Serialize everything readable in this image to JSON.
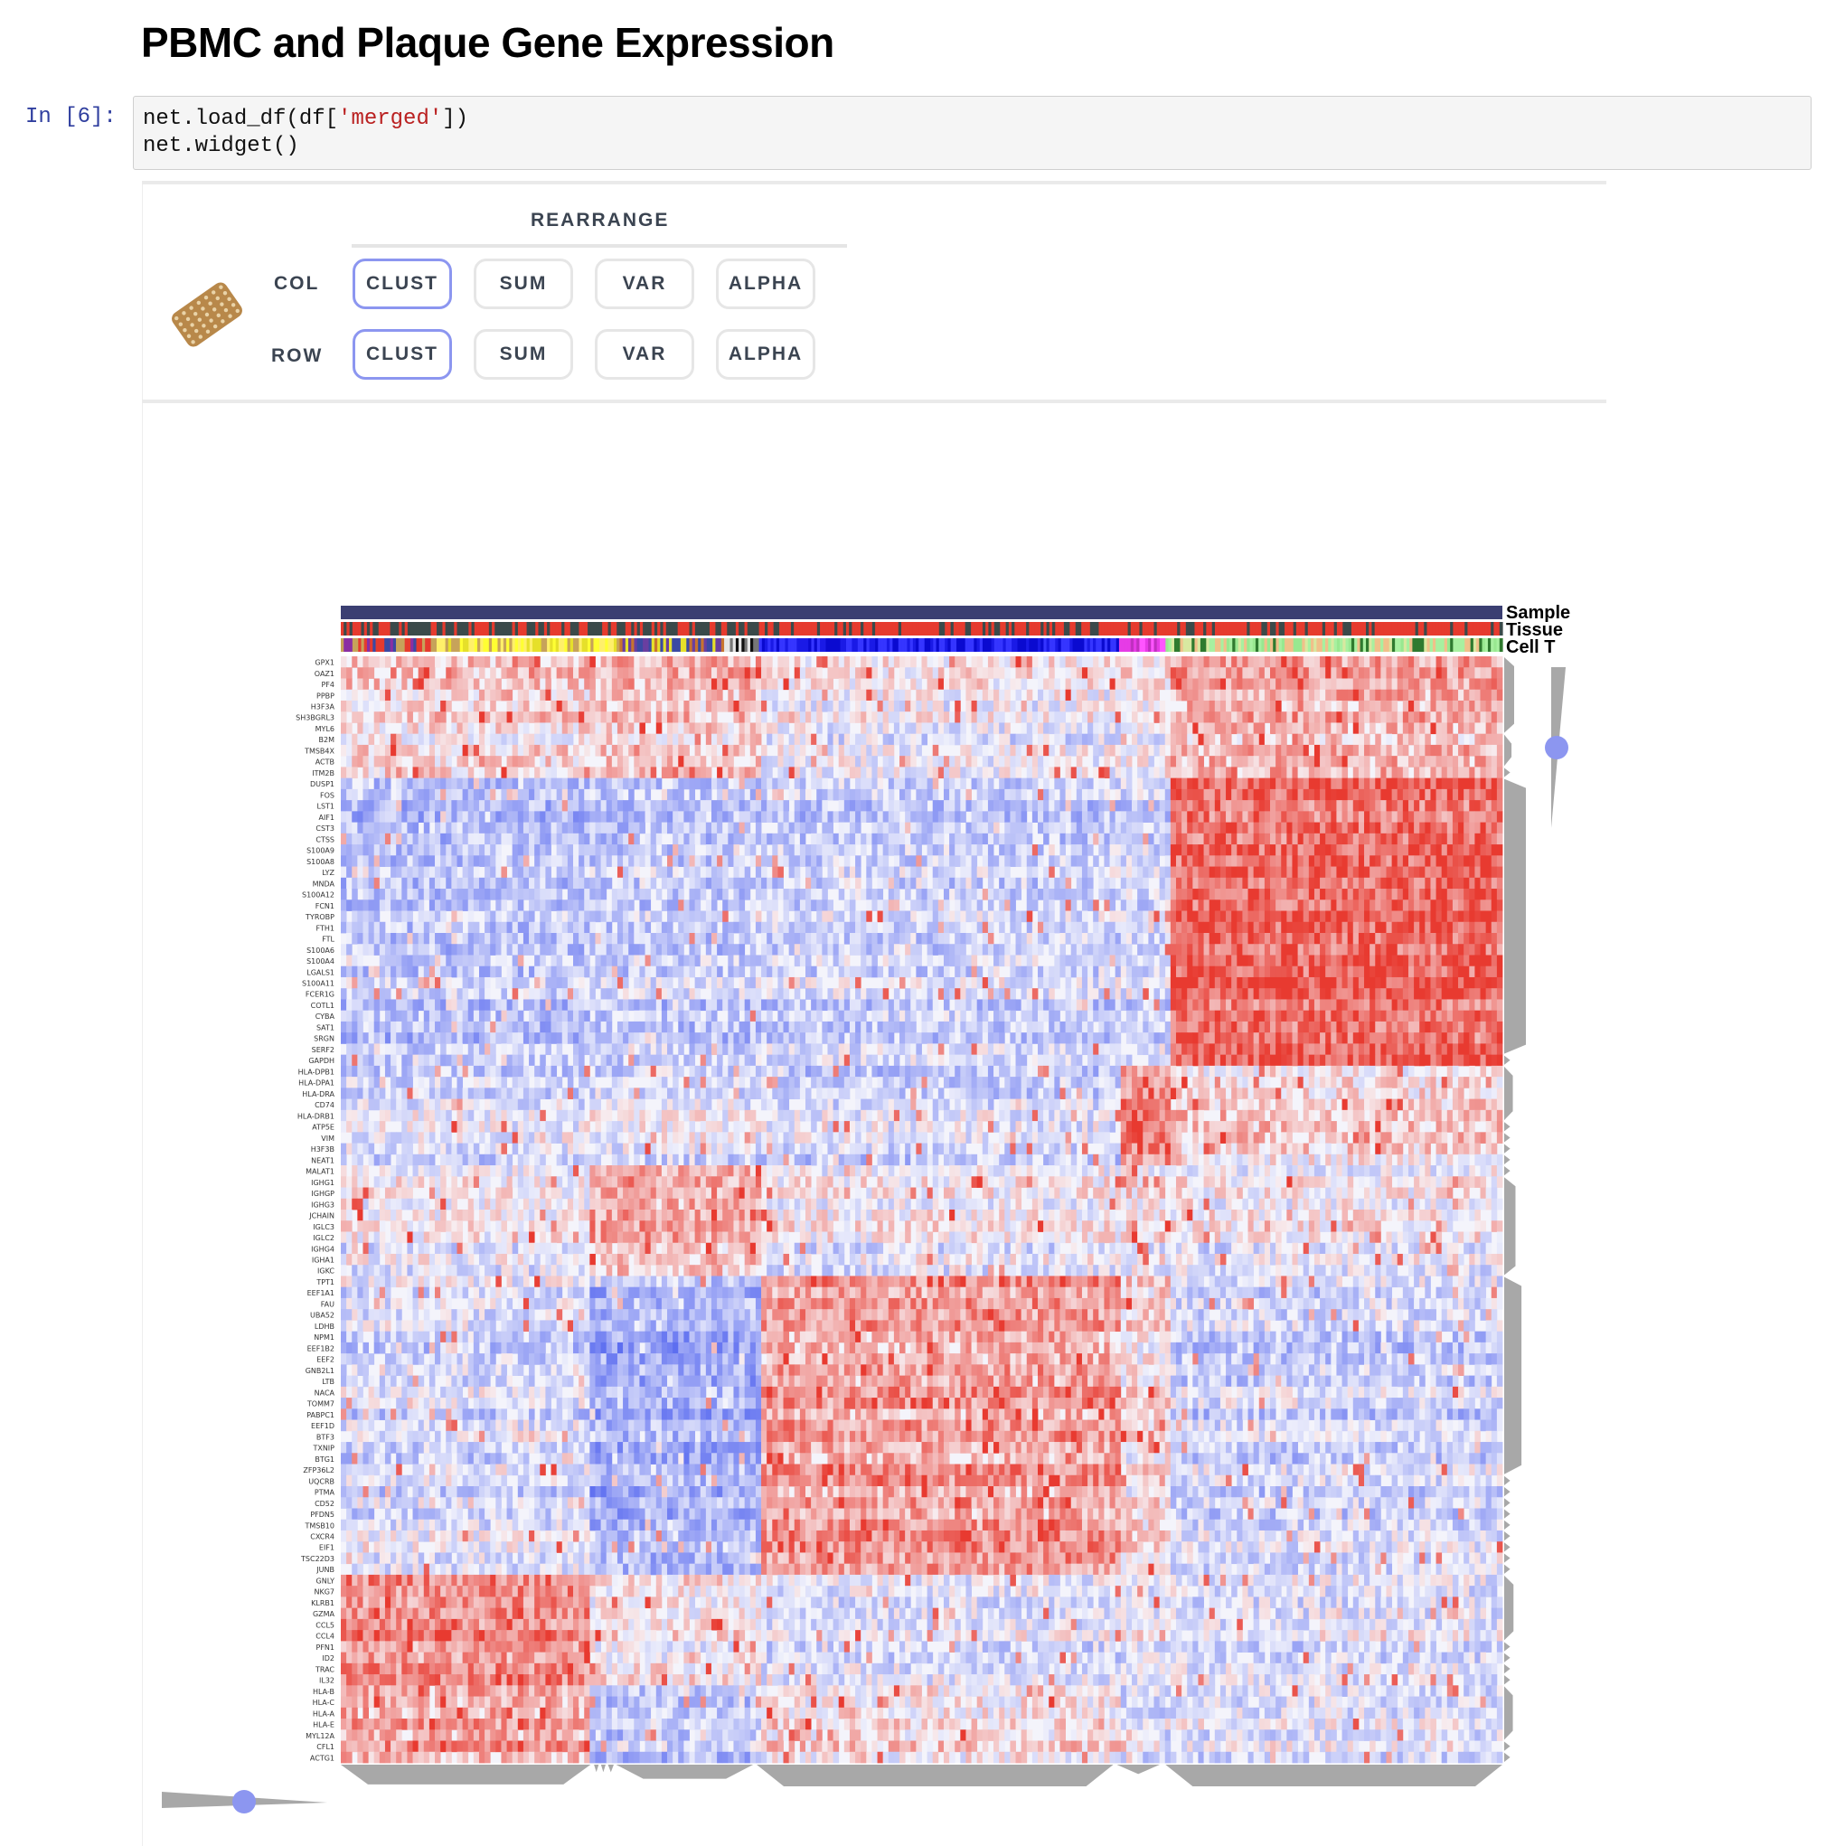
{
  "page": {
    "title": "PBMC and Plaque Gene Expression"
  },
  "cell": {
    "prompt": "In [6]:",
    "code_line1_a": "net.load_df(df[",
    "code_line1_str": "'merged'",
    "code_line1_b": "])",
    "code_line2": "net.widget()"
  },
  "controls": {
    "section_title": "REARRANGE",
    "col_label": "COL",
    "row_label": "ROW",
    "col_buttons": [
      "CLUST",
      "SUM",
      "VAR",
      "ALPHA"
    ],
    "row_buttons": [
      "CLUST",
      "SUM",
      "VAR",
      "ALPHA"
    ],
    "active_col": "CLUST",
    "active_row": "CLUST"
  },
  "heatmap": {
    "category_labels": [
      "Sample",
      "Tissue",
      "Cell T"
    ],
    "colors": {
      "up": "#e8382c",
      "down": "#5b6cf0",
      "sample_bar": "#3b3f72",
      "tree": "#a8a8a8",
      "slider_dot": "#8c96f0"
    },
    "row_labels": [
      "GPX1",
      "OAZ1",
      "PF4",
      "PPBP",
      "H3F3A",
      "SH3BGRL3",
      "MYL6",
      "B2M",
      "TMSB4X",
      "ACTB",
      "ITM2B",
      "DUSP1",
      "FOS",
      "LST1",
      "AIF1",
      "CST3",
      "CTSS",
      "S100A9",
      "S100A8",
      "LYZ",
      "MNDA",
      "S100A12",
      "FCN1",
      "TYROBP",
      "FTH1",
      "FTL",
      "S100A6",
      "S100A4",
      "LGALS1",
      "S100A11",
      "FCER1G",
      "COTL1",
      "CYBA",
      "SAT1",
      "SRGN",
      "SERF2",
      "GAPDH",
      "HLA-DPB1",
      "HLA-DPA1",
      "HLA-DRA",
      "CD74",
      "HLA-DRB1",
      "ATP5E",
      "VIM",
      "H3F3B",
      "NEAT1",
      "MALAT1",
      "IGHG1",
      "IGHGP",
      "IGHG3",
      "JCHAIN",
      "IGLC3",
      "IGLC2",
      "IGHG4",
      "IGHA1",
      "IGKC",
      "TPT1",
      "EEF1A1",
      "FAU",
      "UBA52",
      "LDHB",
      "NPM1",
      "EEF1B2",
      "EEF2",
      "GNB2L1",
      "LTB",
      "NACA",
      "TOMM7",
      "PABPC1",
      "EEF1D",
      "BTF3",
      "TXNIP",
      "BTG1",
      "ZFP36L2",
      "UQCRB",
      "PTMA",
      "CD52",
      "PFDN5",
      "TMSB10",
      "CXCR4",
      "EIF1",
      "TSC22D3",
      "JUNB",
      "GNLY",
      "NKG7",
      "KLRB1",
      "GZMA",
      "CCL5",
      "CCL4",
      "PFN1",
      "ID2",
      "TRAC",
      "IL32",
      "HLA-B",
      "HLA-C",
      "HLA-A",
      "HLA-E",
      "MYL12A",
      "CFL1",
      "ACTG1"
    ]
  }
}
